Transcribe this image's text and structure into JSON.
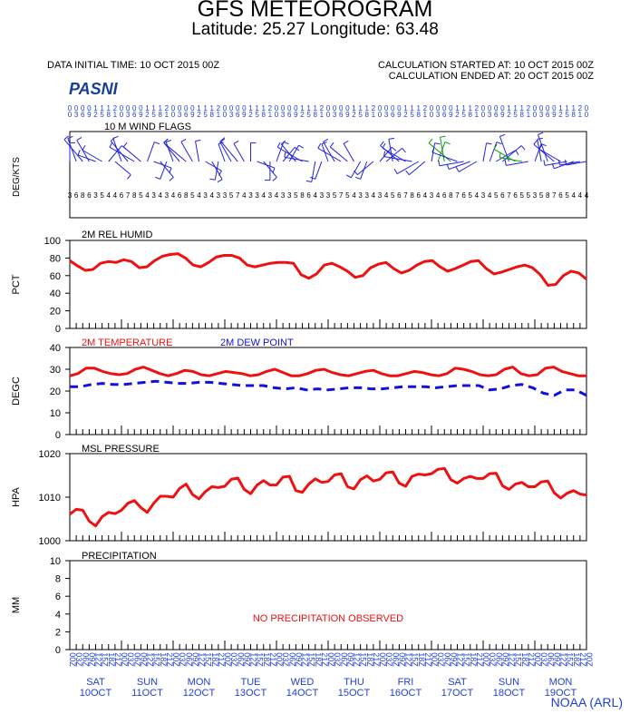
{
  "header": {
    "title": "GFS METEOROGRAM",
    "location_line": "Latitude: 25.27 Longitude:  63.48",
    "init_time": "DATA INITIAL TIME: 10 OCT 2015 00Z",
    "calc_started": "CALCULATION STARTED AT: 10 OCT 2015 00Z",
    "calc_ended": "CALCULATION ENDED AT: 20 OCT 2015 00Z",
    "station": "PASNI",
    "credit": "NOAA (ARL)"
  },
  "colors": {
    "temp": "#ee1111",
    "dew": "#1111dd",
    "label_blue": "#1f3fd8",
    "flag_blue": "#2222dd",
    "flag_green": "#119911"
  },
  "time_axis": {
    "hours": [
      "00",
      "03",
      "06",
      "09",
      "12",
      "15",
      "18",
      "21",
      "00",
      "03",
      "06",
      "09",
      "12",
      "15",
      "18",
      "21",
      "00",
      "03",
      "06",
      "09",
      "12",
      "15",
      "18",
      "21",
      "00",
      "03",
      "06",
      "09",
      "12",
      "15",
      "18",
      "21",
      "00",
      "03",
      "06",
      "09",
      "12",
      "15",
      "18",
      "21",
      "00",
      "03",
      "06",
      "09",
      "12",
      "15",
      "18",
      "21",
      "00",
      "03",
      "06",
      "09",
      "12",
      "15",
      "18",
      "21",
      "00",
      "03",
      "06",
      "09",
      "12",
      "15",
      "18",
      "21",
      "00",
      "03",
      "06",
      "09",
      "12",
      "15",
      "18",
      "21",
      "00",
      "03",
      "06",
      "09",
      "12",
      "15",
      "18",
      "21",
      "00"
    ],
    "days": [
      {
        "dow": "SAT",
        "date": "10OCT"
      },
      {
        "dow": "SUN",
        "date": "11OCT"
      },
      {
        "dow": "MON",
        "date": "12OCT"
      },
      {
        "dow": "TUE",
        "date": "13OCT"
      },
      {
        "dow": "WED",
        "date": "14OCT"
      },
      {
        "dow": "THU",
        "date": "15OCT"
      },
      {
        "dow": "FRI",
        "date": "16OCT"
      },
      {
        "dow": "SAT",
        "date": "17OCT"
      },
      {
        "dow": "SUN",
        "date": "18OCT"
      },
      {
        "dow": "MON",
        "date": "19OCT"
      }
    ]
  },
  "chart_data": [
    {
      "type": "wind_barbs",
      "title": "10 M  WIND FLAGS",
      "ylabel": "DEG/KTS",
      "directions_deg": [
        360,
        340,
        320,
        330,
        290,
        300,
        40,
        130,
        340,
        320,
        300,
        310,
        20,
        110,
        140,
        200,
        340,
        320,
        310,
        330,
        350,
        120,
        150,
        190,
        340,
        330,
        320,
        330,
        360,
        110,
        140,
        180,
        20,
        40,
        30,
        320,
        300,
        280,
        190,
        200,
        340,
        330,
        300,
        310,
        330,
        210,
        200,
        230,
        40,
        50,
        350,
        310,
        300,
        280,
        240,
        230,
        10,
        20,
        350,
        310,
        290,
        260,
        250,
        240,
        10,
        20,
        60,
        50,
        340,
        300,
        280,
        260,
        20,
        350,
        340,
        310,
        300,
        260,
        250,
        260,
        260
      ],
      "speeds_kt": [
        3,
        6,
        8,
        6,
        3,
        5,
        4,
        4,
        6,
        7,
        8,
        5,
        4,
        3,
        4,
        3,
        4,
        6,
        8,
        5,
        4,
        3,
        4,
        3,
        3,
        5,
        7,
        4,
        3,
        3,
        4,
        3,
        4,
        3,
        3,
        5,
        8,
        6,
        4,
        3,
        3,
        5,
        7,
        5,
        4,
        3,
        3,
        4,
        3,
        4,
        5,
        6,
        7,
        8,
        6,
        4,
        3,
        4,
        6,
        8,
        7,
        6,
        5,
        4,
        3,
        4,
        5,
        6,
        7,
        6,
        5,
        5,
        3,
        5,
        8,
        7,
        6,
        5,
        4,
        4,
        4
      ],
      "green_barb_indices": [
        57,
        58,
        59,
        69,
        70
      ]
    },
    {
      "type": "line",
      "title": "2M REL HUMID",
      "ylabel": "PCT",
      "ylim": [
        0,
        100
      ],
      "yticks": [
        0,
        20,
        40,
        60,
        80,
        100
      ],
      "series": [
        {
          "values": [
            77,
            71,
            66,
            67,
            74,
            76,
            75,
            78,
            76,
            69,
            70,
            77,
            82,
            84,
            85,
            80,
            72,
            70,
            75,
            81,
            83,
            83,
            80,
            72,
            70,
            72,
            74,
            75,
            75,
            74,
            61,
            57,
            62,
            72,
            74,
            70,
            65,
            58,
            60,
            69,
            73,
            75,
            68,
            63,
            66,
            72,
            76,
            77,
            70,
            65,
            68,
            72,
            76,
            77,
            68,
            62,
            64,
            67,
            70,
            72,
            69,
            61,
            49,
            50,
            60,
            65,
            63,
            56
          ]
        }
      ]
    },
    {
      "type": "line",
      "title": "",
      "ylabel": "DEGC",
      "ylim": [
        0,
        40
      ],
      "yticks": [
        0,
        10,
        20,
        30,
        40
      ],
      "series": [
        {
          "name": "2M TEMPERATURE",
          "values": [
            27,
            28,
            30.5,
            30.5,
            29,
            28,
            27.5,
            28,
            30,
            31,
            29.5,
            28,
            27,
            28,
            29.5,
            29,
            27.5,
            27,
            28,
            29,
            28.5,
            28,
            27,
            27.5,
            29,
            30,
            28.5,
            27,
            27,
            28,
            29.5,
            30,
            28.5,
            27.5,
            27,
            28,
            29,
            29.5,
            28,
            27,
            27,
            28,
            29,
            28.5,
            27.5,
            27,
            28,
            30.5,
            30,
            29,
            27.5,
            27,
            27.5,
            30,
            31,
            28,
            27,
            27.5,
            30.5,
            31,
            29,
            28,
            27,
            27
          ]
        },
        {
          "name": "2M   DEW POINT",
          "values": [
            22,
            22,
            23,
            23.5,
            23,
            23,
            23.5,
            24,
            24.5,
            24,
            23.5,
            23.5,
            24,
            24,
            23.5,
            23,
            22.5,
            22.5,
            22.5,
            21.5,
            21,
            21.5,
            20.5,
            21,
            20.5,
            21,
            21.5,
            21.5,
            21,
            21,
            21.5,
            22,
            22,
            22,
            21.5,
            22,
            22.5,
            22.5,
            22.5,
            20.5,
            21,
            22.5,
            23,
            21.5,
            19,
            18,
            20.5,
            20.5,
            18
          ]
        }
      ]
    },
    {
      "type": "line",
      "title": "MSL PRESSURE",
      "ylabel": "HPA",
      "ylim": [
        1000,
        1020
      ],
      "yticks": [
        1000,
        1010,
        1020
      ],
      "series": [
        {
          "values": [
            1006.1,
            1007.2,
            1007,
            1004.5,
            1003.4,
            1005.5,
            1006.5,
            1006.2,
            1007,
            1008.6,
            1009.2,
            1007.6,
            1006.5,
            1008.6,
            1010.2,
            1010.2,
            1010,
            1012,
            1013,
            1010.6,
            1009.6,
            1011.3,
            1012.4,
            1012.2,
            1012.5,
            1014.1,
            1014.4,
            1011.8,
            1010.8,
            1012.8,
            1013.8,
            1012.8,
            1012.8,
            1014.6,
            1014.8,
            1011.5,
            1011.1,
            1013,
            1014.2,
            1013.4,
            1013.6,
            1015.1,
            1015.4,
            1012.4,
            1011.9,
            1014,
            1014.9,
            1013.7,
            1014.1,
            1015.6,
            1015.8,
            1013.2,
            1012.5,
            1014.8,
            1015.3,
            1015.1,
            1015.4,
            1016.4,
            1016.6,
            1014,
            1013.2,
            1014.3,
            1014.8,
            1014.3,
            1014.3,
            1015.4,
            1015.5,
            1012.6,
            1011.8,
            1013,
            1013.4,
            1012.4,
            1012.4,
            1013.5,
            1013.7,
            1011,
            1009.8,
            1010.9,
            1011.5,
            1010.7,
            1010.5
          ]
        }
      ]
    },
    {
      "type": "bar",
      "title": "PRECIPITATION",
      "ylabel": "MM",
      "ylim": [
        0,
        10
      ],
      "yticks": [
        0,
        2,
        4,
        6,
        8,
        10
      ],
      "note": "NO PRECIPITATION OBSERVED",
      "values": []
    }
  ]
}
